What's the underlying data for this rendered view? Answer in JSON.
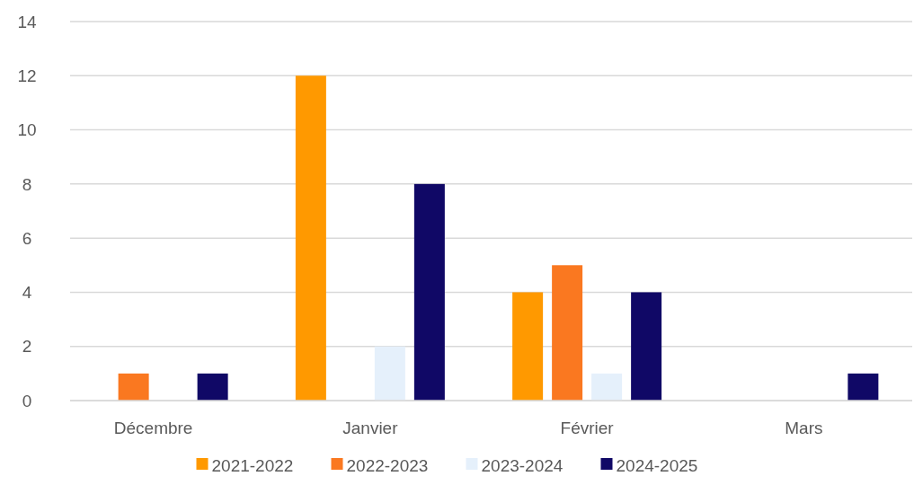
{
  "chart_data": {
    "type": "bar",
    "categories": [
      "Décembre",
      "Janvier",
      "Février",
      "Mars"
    ],
    "series": [
      {
        "name": "2021-2022",
        "color": "#ff9900",
        "values": [
          0,
          12,
          4,
          0
        ]
      },
      {
        "name": "2022-2023",
        "color": "#fa7820",
        "values": [
          1,
          0,
          5,
          0
        ]
      },
      {
        "name": "2023-2024",
        "color": "#e5f0fb",
        "values": [
          0,
          2,
          1,
          0
        ]
      },
      {
        "name": "2024-2025",
        "color": "#100866",
        "values": [
          1,
          8,
          4,
          1
        ]
      }
    ],
    "ylim": [
      0,
      14
    ],
    "yticks": [
      0,
      2,
      4,
      6,
      8,
      10,
      12,
      14
    ],
    "grid": "y",
    "legend": "bottom"
  }
}
